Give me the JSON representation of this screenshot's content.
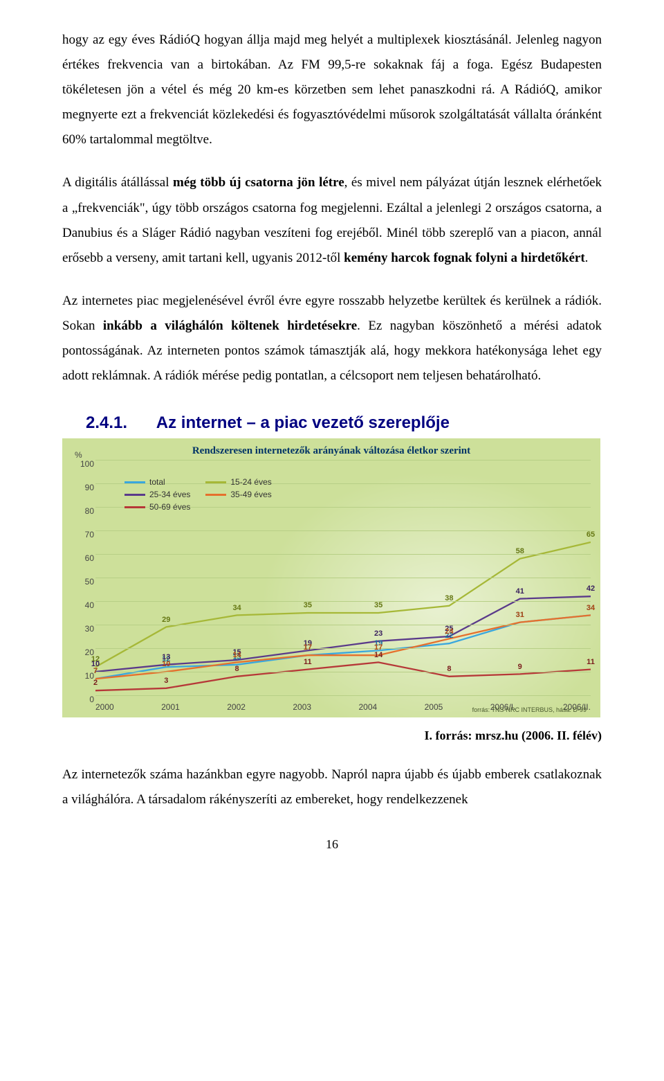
{
  "paragraphs": {
    "p1": "hogy az egy éves RádióQ hogyan állja majd meg helyét a multiplexek kiosztásánál. Jelenleg nagyon értékes frekvencia van a birtokában. Az FM 99,5-re sokaknak fáj a foga. Egész Budapesten tökéletesen jön a vétel és még 20 km-es körzetben sem lehet panaszkodni rá. A RádióQ, amikor megnyerte ezt a frekvenciát közlekedési és fogyasztóvédelmi műsorok szolgáltatását vállalta óránként 60% tartalommal megtöltve.",
    "p2_html": "A digitális átállással <b>még több új csatorna jön létre</b>, és mivel nem pályázat útján lesznek elérhetőek a „frekvenciák\", úgy több országos csatorna fog megjelenni. Ezáltal a jelenlegi 2 országos csatorna, a Danubius és a Sláger Rádió nagyban veszíteni fog erejéből. Minél több szereplő van a piacon, annál erősebb a verseny, amit tartani kell, ugyanis 2012-től <b>kemény harcok fognak folyni a hirdetőkért</b>.",
    "p3_html": "Az internetes piac megjelenésével évről évre egyre rosszabb helyzetbe kerültek és kerülnek a rádiók. Sokan <b>inkább a világhálón költenek hirdetésekre</b>. Ez nagyban köszönhető a mérési adatok pontosságának. Az interneten pontos számok támasztják alá, hogy mekkora hatékonysága lehet egy adott reklámnak. A rádiók mérése pedig pontatlan, a célcsoport nem teljesen behatárolható."
  },
  "section": {
    "number": "2.4.1.",
    "title": "Az internet – a piac vezető szereplője"
  },
  "chart": {
    "type": "line",
    "title": "Rendszeresen internetezők arányának változása életkor szerint",
    "y_unit": "%",
    "ylim": [
      0,
      100
    ],
    "ytick_step": 10,
    "background_color": "#cde09a",
    "grid_color": "#b7cf86",
    "categories": [
      "2000",
      "2001",
      "2002",
      "2003",
      "2004",
      "2005",
      "2006/I.",
      "2006/II."
    ],
    "legend_position": "top-left",
    "source_inchart": "forrás: TNS-NRC INTERBUS, hása: D-99",
    "series": [
      {
        "name": "total",
        "color": "#3aa7dd",
        "values": [
          7,
          12,
          13,
          17,
          19,
          22,
          31,
          34
        ],
        "label_color": "#1a6ea0"
      },
      {
        "name": "15-24 éves",
        "color": "#a6b837",
        "values": [
          12,
          29,
          34,
          35,
          35,
          38,
          58,
          65
        ],
        "label_color": "#667814"
      },
      {
        "name": "25-34 éves",
        "color": "#5a3a8a",
        "values": [
          10,
          13,
          15,
          19,
          23,
          25,
          41,
          42
        ],
        "label_color": "#3b225f"
      },
      {
        "name": "35-49 éves",
        "color": "#e5702d",
        "values": [
          7,
          10,
          14,
          17,
          17,
          24,
          31,
          34
        ],
        "label_color": "#b24a13"
      },
      {
        "name": "50-69 éves",
        "color": "#b63838",
        "values": [
          2,
          3,
          8,
          11,
          14,
          8,
          9,
          11
        ],
        "label_color": "#7a1d1d"
      }
    ]
  },
  "caption": {
    "roman": "I.",
    "text": "forrás: mrsz.hu (2006. II. félév)"
  },
  "following_paragraph": "Az internetezők száma hazánkban egyre nagyobb. Napról napra újabb és újabb emberek csatlakoznak a világhálóra. A társadalom rákényszeríti az embereket, hogy rendelkezzenek",
  "page_number": "16"
}
